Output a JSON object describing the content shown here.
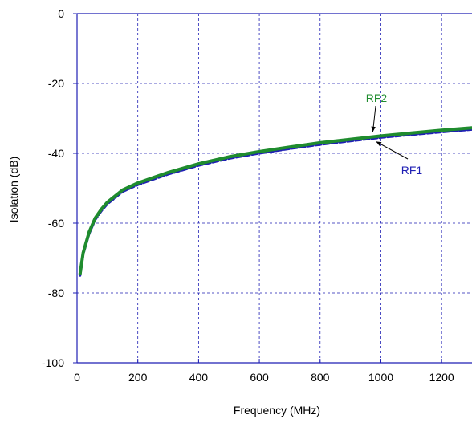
{
  "chart_data": {
    "type": "line",
    "xlabel": "Frequency (MHz)",
    "ylabel": "Isolation (dB)",
    "xlim": [
      0,
      1300
    ],
    "ylim": [
      -100,
      0
    ],
    "x_ticks": [
      "0",
      "200",
      "400",
      "600",
      "800",
      "1000",
      "1200"
    ],
    "y_ticks": [
      "0",
      "-20",
      "-40",
      "-60",
      "-80",
      "-100"
    ],
    "grid": true,
    "series": [
      {
        "name": "RF1",
        "color": "#1f1fb4",
        "style": "dashed",
        "x": [
          10,
          20,
          40,
          60,
          80,
          100,
          150,
          200,
          250,
          300,
          400,
          500,
          600,
          700,
          800,
          900,
          1000,
          1100,
          1200,
          1300
        ],
        "y": [
          -75,
          -69,
          -63,
          -59,
          -56.5,
          -54.5,
          -51,
          -49,
          -47.5,
          -46,
          -43.5,
          -41.5,
          -40,
          -38.7,
          -37.5,
          -36.5,
          -35.5,
          -34.7,
          -33.9,
          -33.2
        ]
      },
      {
        "name": "RF2",
        "color": "#1f8c2e",
        "style": "solid",
        "x": [
          10,
          20,
          40,
          60,
          80,
          100,
          150,
          200,
          250,
          300,
          400,
          500,
          600,
          700,
          800,
          900,
          1000,
          1100,
          1200,
          1300
        ],
        "y": [
          -74.5,
          -68.5,
          -62.5,
          -58.5,
          -56,
          -54,
          -50.5,
          -48.5,
          -47,
          -45.5,
          -43,
          -41,
          -39.5,
          -38.2,
          -37,
          -36,
          -35,
          -34.2,
          -33.4,
          -32.7
        ]
      }
    ],
    "annotations": [
      {
        "text": "RF2",
        "series": "RF2",
        "at_x": 1000
      },
      {
        "text": "RF1",
        "series": "RF1",
        "at_x": 1000
      }
    ]
  }
}
